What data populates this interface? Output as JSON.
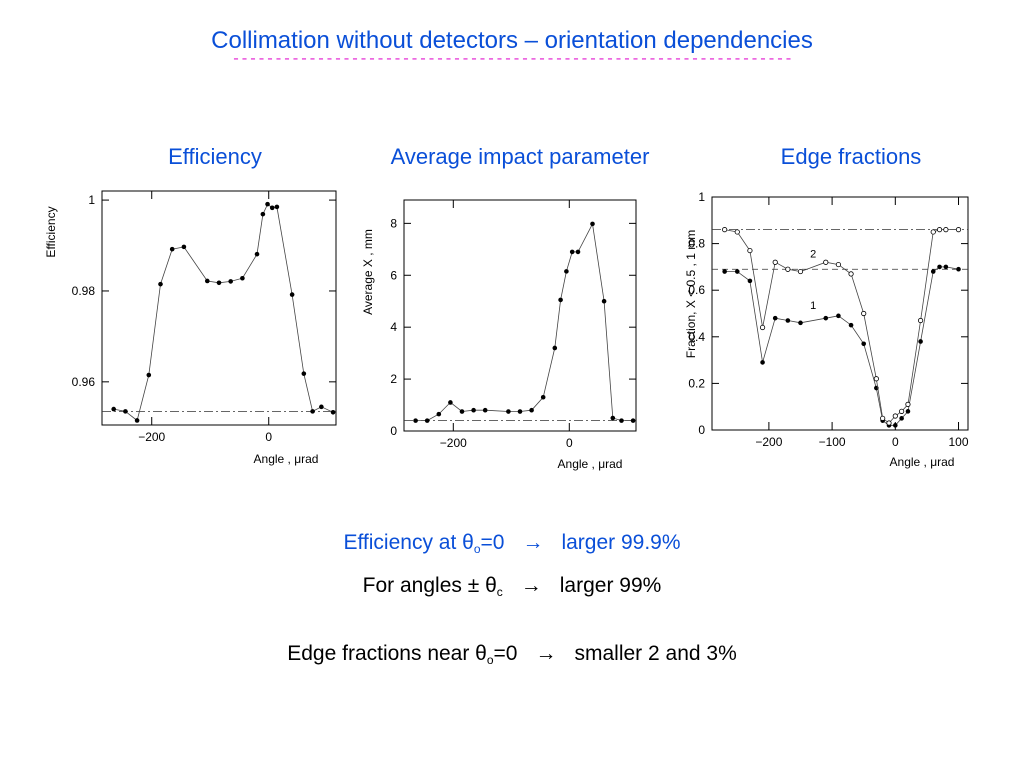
{
  "slide": {
    "title": "Collimation without detectors – orientation dependencies",
    "underline": "------------------------------------------------------------------",
    "panel_titles": [
      "Efficiency",
      "Average impact parameter",
      "Edge fractions"
    ],
    "lines": [
      {
        "pre": "Efficiency at θ",
        "sub": "o",
        "post": "=0",
        "arrow": "→",
        "tail": "larger 99.9%"
      },
      {
        "pre": "For angles ± θ",
        "sub": "c",
        "post": "",
        "arrow": "→",
        "tail": "larger 99%"
      },
      {
        "pre": "Edge fractions near θ",
        "sub": "o",
        "post": "=0",
        "arrow": "→",
        "tail": "smaller 2 and 3%"
      }
    ]
  },
  "colors": {
    "title": "#0a4fd8",
    "underline": "#e21fd0",
    "marker": "#000000"
  },
  "chart_data": [
    {
      "type": "line",
      "ylabel": "Efficiency",
      "xlabel": "Angle , μrad",
      "xlim": [
        -285,
        115
      ],
      "ylim": [
        0.9505,
        1.002
      ],
      "xticks": [
        -200,
        0
      ],
      "xtick_labels": [
        "−200",
        "0"
      ],
      "yticks": [
        0.96,
        0.98,
        1
      ],
      "ytick_labels": [
        "0.96",
        "0.98",
        "1"
      ],
      "reference_lines": [
        {
          "y": 0.9535,
          "style": "dashdot"
        }
      ],
      "series": [
        {
          "marker": "filled",
          "x": [
            -265,
            -245,
            -225,
            -205,
            -185,
            -165,
            -145,
            -105,
            -85,
            -65,
            -45,
            -20,
            -10,
            -2,
            6,
            14,
            40,
            60,
            75,
            90,
            110
          ],
          "y": [
            0.954,
            0.9535,
            0.9515,
            0.9615,
            0.9815,
            0.9892,
            0.9897,
            0.9822,
            0.9818,
            0.9821,
            0.9828,
            0.9881,
            0.9969,
            0.9991,
            0.9983,
            0.9985,
            0.9792,
            0.9618,
            0.9535,
            0.9545,
            0.9533
          ]
        }
      ]
    },
    {
      "type": "line",
      "ylabel": "Average X , mm",
      "xlabel": "Angle , μrad",
      "xlim": [
        -285,
        115
      ],
      "ylim": [
        0,
        8.9
      ],
      "xticks": [
        -200,
        0
      ],
      "xtick_labels": [
        "−200",
        "0"
      ],
      "yticks": [
        0,
        2,
        4,
        6,
        8
      ],
      "ytick_labels": [
        "0",
        "2",
        "4",
        "6",
        "8"
      ],
      "reference_lines": [
        {
          "y": 0.4,
          "style": "dashdot"
        }
      ],
      "series": [
        {
          "marker": "filled",
          "x": [
            -265,
            -245,
            -225,
            -205,
            -185,
            -165,
            -145,
            -105,
            -85,
            -65,
            -45,
            -25,
            -15,
            -5,
            5,
            15,
            40,
            60,
            75,
            90,
            110
          ],
          "y": [
            0.4,
            0.4,
            0.65,
            1.1,
            0.75,
            0.8,
            0.8,
            0.75,
            0.75,
            0.8,
            1.3,
            3.2,
            5.05,
            6.15,
            6.9,
            6.9,
            7.98,
            5.0,
            0.5,
            0.4,
            0.4
          ]
        }
      ]
    },
    {
      "type": "line",
      "ylabel": "Fraction, X < 0.5 , 1 mm",
      "xlabel": "Angle , μrad",
      "xlim": [
        -290,
        115
      ],
      "ylim": [
        0,
        1
      ],
      "xticks": [
        -200,
        -100,
        0,
        100
      ],
      "xtick_labels": [
        "−200",
        "−100",
        "0",
        "100"
      ],
      "yticks": [
        0,
        0.2,
        0.4,
        0.6,
        0.8,
        1
      ],
      "ytick_labels": [
        "0",
        "0.2",
        "0.4",
        "0.6",
        "0.8",
        "1"
      ],
      "reference_lines": [
        {
          "y": 0.86,
          "style": "dashdot"
        },
        {
          "y": 0.69,
          "style": "dashed"
        }
      ],
      "annotations": [
        {
          "text": "2",
          "x": -130,
          "y": 0.74
        },
        {
          "text": "1",
          "x": -130,
          "y": 0.52
        }
      ],
      "series": [
        {
          "name": "1",
          "marker": "filled",
          "x": [
            -270,
            -250,
            -230,
            -210,
            -190,
            -170,
            -150,
            -110,
            -90,
            -70,
            -50,
            -30,
            -20,
            -10,
            0,
            10,
            20,
            40,
            60,
            70,
            80,
            100
          ],
          "y": [
            0.68,
            0.68,
            0.64,
            0.29,
            0.48,
            0.47,
            0.46,
            0.48,
            0.49,
            0.45,
            0.37,
            0.18,
            0.04,
            0.02,
            0.02,
            0.05,
            0.08,
            0.38,
            0.68,
            0.7,
            0.7,
            0.69
          ]
        },
        {
          "name": "2",
          "marker": "open",
          "x": [
            -270,
            -250,
            -230,
            -210,
            -190,
            -170,
            -150,
            -110,
            -90,
            -70,
            -50,
            -30,
            -20,
            -10,
            0,
            10,
            20,
            40,
            60,
            70,
            80,
            100
          ],
          "y": [
            0.86,
            0.85,
            0.77,
            0.44,
            0.72,
            0.69,
            0.68,
            0.72,
            0.71,
            0.67,
            0.5,
            0.22,
            0.05,
            0.03,
            0.06,
            0.08,
            0.11,
            0.47,
            0.85,
            0.86,
            0.86,
            0.86
          ]
        }
      ]
    }
  ]
}
